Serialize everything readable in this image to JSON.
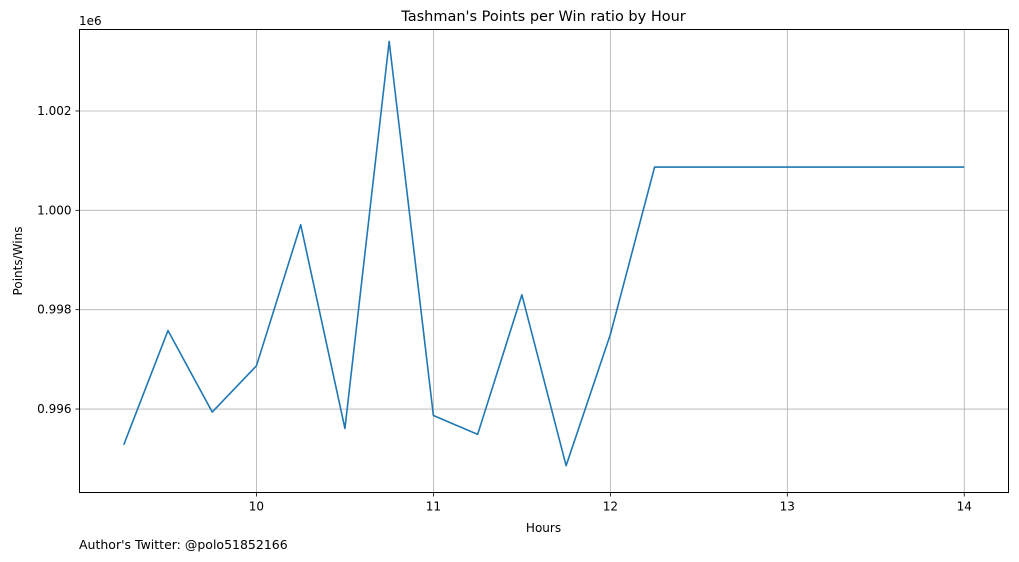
{
  "chart_data": {
    "type": "line",
    "title": "Tashman's Points per Win ratio by Hour",
    "xlabel": "Hours",
    "ylabel": "Points/Wins",
    "y_offset_label": "1e6",
    "xlim": [
      9.0,
      14.25
    ],
    "ylim": [
      994320,
      1003640
    ],
    "xticks": [
      10,
      11,
      12,
      13,
      14
    ],
    "yticks": [
      996000,
      998000,
      1000000,
      1002000
    ],
    "ytick_labels": [
      "0.996",
      "0.998",
      "1.000",
      "1.002"
    ],
    "grid": true,
    "line_color": "#1f77b4",
    "series": [
      {
        "x": [
          9.25,
          9.5,
          9.75,
          10.0,
          10.25,
          10.5,
          10.75,
          11.0,
          11.25,
          11.5,
          11.75,
          12.0,
          12.25,
          12.5,
          12.75,
          13.0,
          13.25,
          13.5,
          13.75,
          14.0
        ],
        "values": [
          995280,
          997580,
          995940,
          996870,
          999710,
          995610,
          1003400,
          995870,
          995490,
          998300,
          994860,
          997500,
          1000870,
          1000870,
          1000870,
          1000870,
          1000870,
          1000870,
          1000870,
          1000870
        ]
      }
    ]
  },
  "footer": {
    "author_text": "Author's Twitter: @polo51852166"
  }
}
